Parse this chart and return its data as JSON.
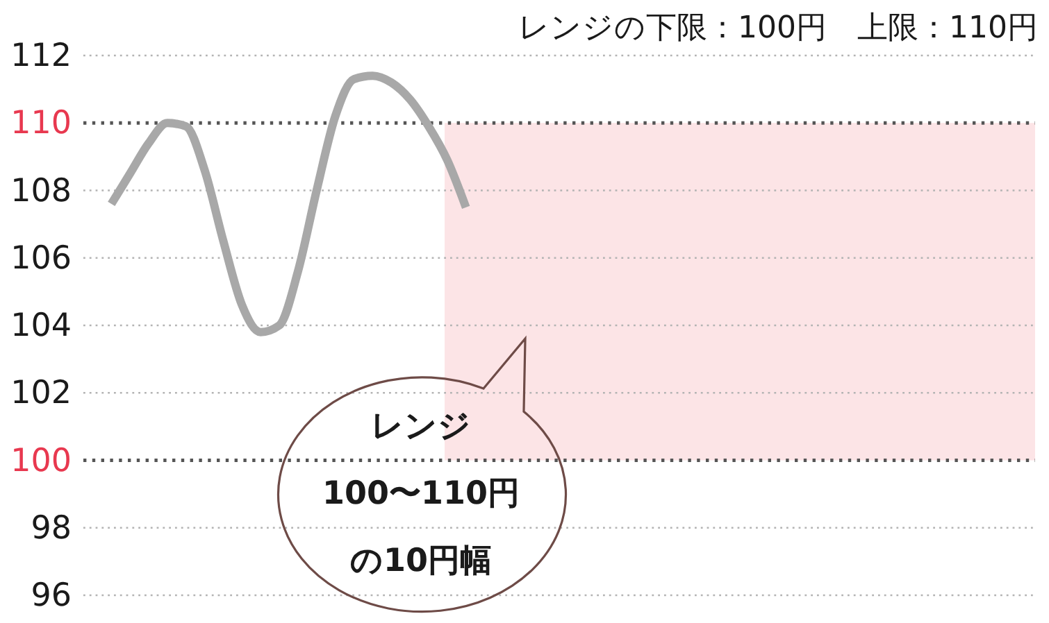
{
  "chart_data": {
    "type": "line",
    "categories": [
      null,
      null,
      null,
      null,
      null,
      null,
      null,
      null,
      null,
      null,
      null,
      null,
      null,
      null,
      null,
      null,
      null,
      null,
      null,
      null,
      null,
      null,
      null,
      null,
      null,
      null,
      null,
      null,
      null,
      null,
      null,
      null,
      null,
      null,
      null,
      null,
      null,
      null,
      null,
      null,
      null,
      null,
      null,
      null,
      null,
      null,
      null,
      null,
      null,
      null,
      null
    ],
    "series": [
      {
        "color": "#a8a8a8",
        "values": [
          null,
          107.6,
          108.5,
          109.4,
          110.0,
          109.9,
          108.6,
          106.5,
          104.6,
          103.8,
          104.0,
          105.6,
          108.0,
          110.2,
          111.3,
          111.4,
          111.2,
          110.7,
          109.9,
          108.9,
          107.5,
          null,
          null,
          null,
          null,
          null,
          null,
          null,
          null,
          null,
          null,
          null,
          null,
          null,
          null,
          null,
          null,
          null,
          null,
          null,
          null,
          null,
          null,
          null,
          null,
          null,
          null,
          null,
          null,
          null,
          null
        ]
      }
    ],
    "ylim": [
      96,
      112
    ],
    "yticks": [
      96,
      98,
      100,
      102,
      104,
      106,
      108,
      110,
      112
    ],
    "grid": "y",
    "tick_labels": "y",
    "bands": [
      {
        "axis": "y",
        "from": 100,
        "to": 110,
        "color": "#fce4e6"
      }
    ],
    "annotations": [
      "レンジの下限：100円　上限：110円",
      "レンジ100〜110円の10円幅"
    ]
  }
}
